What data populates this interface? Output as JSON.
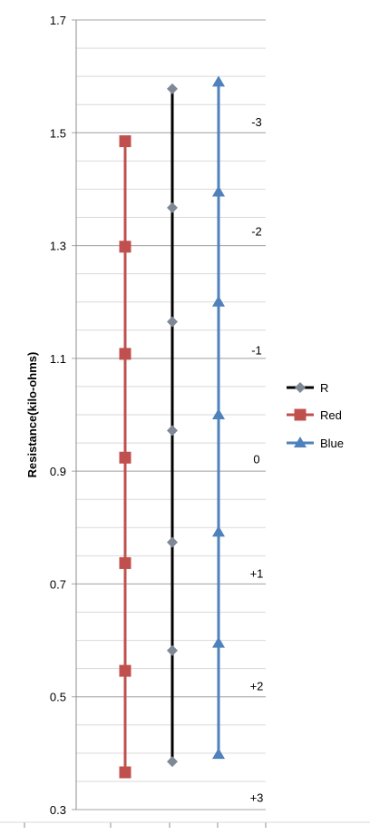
{
  "chart_data": {
    "type": "line",
    "title": "",
    "xlabel": "",
    "ylabel": "Resistance(kilo-ohms)",
    "ylim": [
      0.3,
      1.7
    ],
    "y_ticks": [
      "0.3",
      "0.5",
      "0.7",
      "0.9",
      "1.1",
      "1.3",
      "1.5",
      "1.7"
    ],
    "grid": {
      "major_horizontal": true,
      "minor_horizontal": true,
      "vertical": false
    },
    "legend_position": "right",
    "series": [
      {
        "name": "R",
        "color": "#000000",
        "marker": "diamond",
        "marker_color": "#7f8894",
        "values": [
          1.578,
          1.367,
          1.165,
          0.972,
          0.774,
          0.582,
          0.385
        ]
      },
      {
        "name": "Red",
        "color": "#c0504d",
        "marker": "square",
        "marker_color": "#c0504d",
        "values": [
          1.485,
          1.298,
          1.108,
          0.924,
          0.737,
          0.546,
          0.366
        ]
      },
      {
        "name": "Blue",
        "color": "#4f81bd",
        "marker": "triangle",
        "marker_color": "#4f81bd",
        "values": [
          1.59,
          1.395,
          1.2,
          1.0,
          0.792,
          0.595,
          0.398
        ]
      }
    ],
    "annotations": [
      {
        "text": "-3",
        "y": 1.52
      },
      {
        "text": "-2",
        "y": 1.326
      },
      {
        "text": "-1",
        "y": 1.115
      },
      {
        "text": "0",
        "y": 0.922
      },
      {
        "text": "+1",
        "y": 0.719
      },
      {
        "text": "+2",
        "y": 0.52
      },
      {
        "text": "+3",
        "y": 0.322
      }
    ]
  }
}
